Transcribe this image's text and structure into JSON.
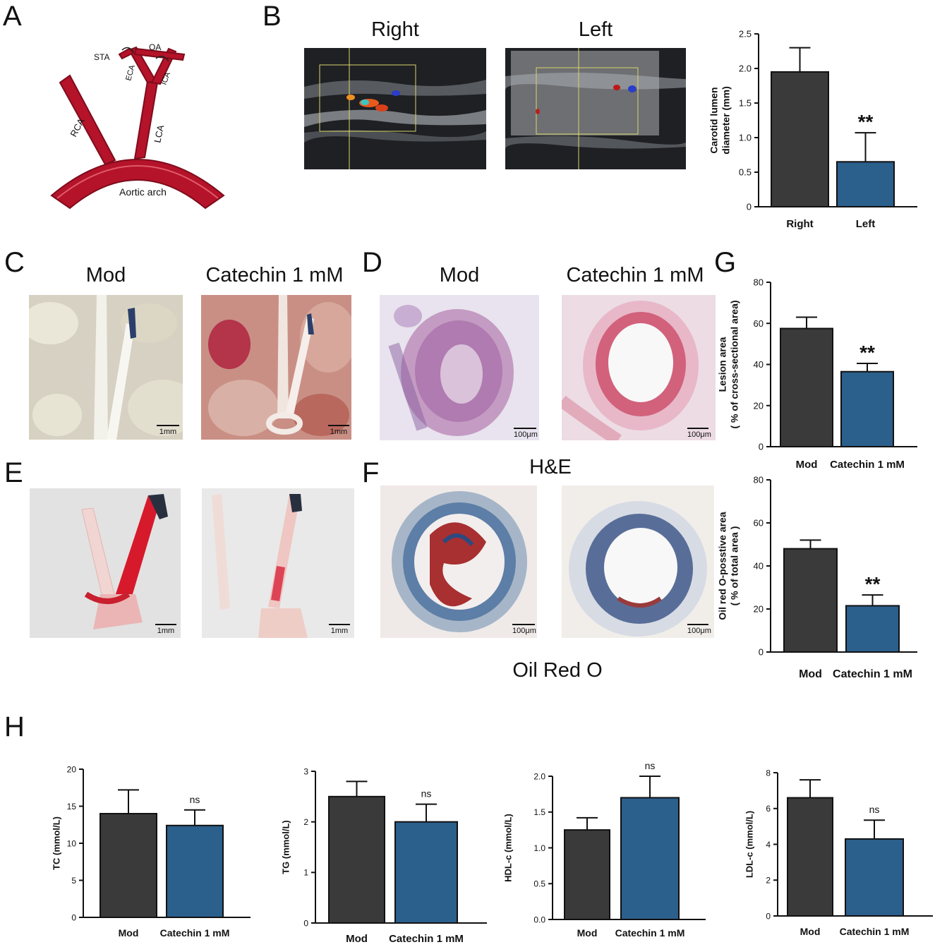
{
  "panel_labels": {
    "a": "A",
    "b": "B",
    "c": "C",
    "d": "D",
    "e": "E",
    "f": "F",
    "g": "G",
    "h": "H"
  },
  "panel_a": {
    "vessels": {
      "sta": "STA",
      "oa": "OA",
      "eca": "ECA",
      "ica": "ICA",
      "rca": "RCA",
      "lca": "LCA",
      "arch": "Aortic arch"
    },
    "colors": {
      "vessel": "#b5132a",
      "outline": "#7e0c1c",
      "highlight": "#e05a6a"
    }
  },
  "panel_b": {
    "right_title": "Right",
    "left_title": "Left"
  },
  "panel_c": {
    "mod_title": "Mod",
    "cat_title": "Catechin 1 mM",
    "scale_mod": "1mm",
    "scale_cat": "1mm"
  },
  "panel_d": {
    "mod_title": "Mod",
    "cat_title": "Catechin 1 mM",
    "scale_mod": "100μm",
    "scale_cat": "100μm",
    "stain_caption": "H&E"
  },
  "panel_e": {
    "scale_mod": "1mm",
    "scale_cat": "1mm"
  },
  "panel_f": {
    "scale_mod": "100μm",
    "scale_cat": "100μm",
    "stain_caption": "Oil Red O"
  },
  "colors": {
    "mod_bar": "#3a3a3a",
    "cat_bar": "#2b5f8c",
    "axis": "#111111"
  },
  "chart_data": [
    {
      "id": "b",
      "type": "bar",
      "categories": [
        "Right",
        "Left"
      ],
      "values": [
        1.95,
        0.65
      ],
      "errors": [
        0.35,
        0.42
      ],
      "ylabel": [
        "Carotid lumen",
        "diameter (mm)"
      ],
      "ylim": [
        0,
        2.5
      ],
      "yticks": [
        "0",
        "0.5",
        "1.0",
        "1.5",
        "2.0",
        "2.5"
      ],
      "significance": [
        "",
        "**"
      ]
    },
    {
      "id": "g1",
      "type": "bar",
      "categories": [
        "Mod",
        "Catechin 1 mM"
      ],
      "values": [
        57.5,
        36.5
      ],
      "errors": [
        5.5,
        4.0
      ],
      "ylabel": [
        "Lesion area",
        "( % of cross-sectional area)"
      ],
      "ylim": [
        0,
        80
      ],
      "yticks": [
        "0",
        "20",
        "40",
        "60",
        "80"
      ],
      "significance": [
        "",
        "**"
      ]
    },
    {
      "id": "g2",
      "type": "bar",
      "categories": [
        "Mod",
        "Catechin 1 mM"
      ],
      "values": [
        48,
        21.5
      ],
      "errors": [
        4.0,
        5.0
      ],
      "ylabel": [
        "Oil red O-posstive area",
        "( %   of total area )"
      ],
      "ylim": [
        0,
        80
      ],
      "yticks": [
        "0",
        "20",
        "40",
        "60",
        "80"
      ],
      "significance": [
        "",
        "**"
      ]
    },
    {
      "id": "h1",
      "type": "bar",
      "categories": [
        "Mod",
        "Catechin 1 mM"
      ],
      "values": [
        14,
        12.4
      ],
      "errors": [
        3.2,
        2.1
      ],
      "ylabel": [
        "TC (mmol/L)"
      ],
      "ylim": [
        0,
        20
      ],
      "yticks": [
        "0",
        "5",
        "10",
        "15",
        "20"
      ],
      "significance": [
        "",
        "ns"
      ]
    },
    {
      "id": "h2",
      "type": "bar",
      "categories": [
        "Mod",
        "Catechin 1 mM"
      ],
      "values": [
        2.5,
        2.0
      ],
      "errors": [
        0.3,
        0.35
      ],
      "ylabel": [
        "TG (mmol/L)"
      ],
      "ylim": [
        0,
        3
      ],
      "yticks": [
        "0",
        "1",
        "2",
        "3"
      ],
      "significance": [
        "",
        "ns"
      ]
    },
    {
      "id": "h3",
      "type": "bar",
      "categories": [
        "Mod",
        "Catechin 1 mM"
      ],
      "values": [
        1.25,
        1.7
      ],
      "errors": [
        0.17,
        0.3
      ],
      "ylabel": [
        "HDL-c (mmol/L)"
      ],
      "ylim": [
        0,
        2.0
      ],
      "yticks": [
        "0.0",
        "0.5",
        "1.0",
        "1.5",
        "2.0"
      ],
      "significance": [
        "",
        "ns"
      ]
    },
    {
      "id": "h4",
      "type": "bar",
      "categories": [
        "Mod",
        "Catechin 1 mM"
      ],
      "values": [
        6.6,
        4.3
      ],
      "errors": [
        1.0,
        1.05
      ],
      "ylabel": [
        "LDL-c (mmol/L)"
      ],
      "ylim": [
        0,
        8
      ],
      "yticks": [
        "0",
        "2",
        "4",
        "6",
        "8"
      ],
      "significance": [
        "",
        "ns"
      ]
    }
  ]
}
